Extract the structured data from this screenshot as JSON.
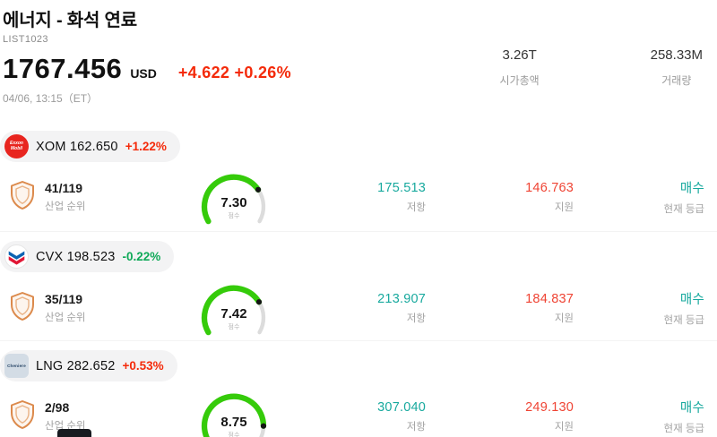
{
  "colors": {
    "up": "#f42a0a",
    "down": "#0fa958",
    "resistance": "#18a99e",
    "support": "#ef4434",
    "rating": "#18a99e",
    "gauge_green": "#35cb0a",
    "gauge_rest": "#dcdcdc"
  },
  "header": {
    "title": "에너지 - 화석 연료",
    "list_id": "LIST1023",
    "price": "1767.456",
    "currency": "USD",
    "change": "+4.622 +0.26%",
    "datetime": "04/06, 13:15（ET）",
    "stats": [
      {
        "value": "3.26T",
        "label": "시가총액"
      },
      {
        "value": "258.33M",
        "label": "거래량"
      }
    ]
  },
  "stocks": [
    {
      "ticker": "XOM",
      "price": "162.650",
      "change": "+1.22%",
      "change_color": "#f42a0a",
      "logo_text": "Exxon Mobil",
      "rank": "41/119",
      "rank_label": "산업 순위",
      "score": 7.3,
      "score_display": "7.30",
      "score_label": "점수",
      "resistance": "175.513",
      "resistance_label": "저항",
      "support": "146.763",
      "support_label": "지원",
      "rating": "매수",
      "rating_label": "현재 등급"
    },
    {
      "ticker": "CVX",
      "price": "198.523",
      "change": "-0.22%",
      "change_color": "#0fa958",
      "logo_text": "Chevron",
      "rank": "35/119",
      "rank_label": "산업 순위",
      "score": 7.42,
      "score_display": "7.42",
      "score_label": "점수",
      "resistance": "213.907",
      "resistance_label": "저항",
      "support": "184.837",
      "support_label": "지원",
      "rating": "매수",
      "rating_label": "현재 등급"
    },
    {
      "ticker": "LNG",
      "price": "282.652",
      "change": "+0.53%",
      "change_color": "#f42a0a",
      "logo_text": "Cheniere",
      "rank": "2/98",
      "rank_label": "산업 순위",
      "score": 8.75,
      "score_display": "8.75",
      "score_label": "점수",
      "resistance": "307.040",
      "resistance_label": "저항",
      "support": "249.130",
      "support_label": "지원",
      "rating": "매수",
      "rating_label": "현재 등급"
    }
  ]
}
